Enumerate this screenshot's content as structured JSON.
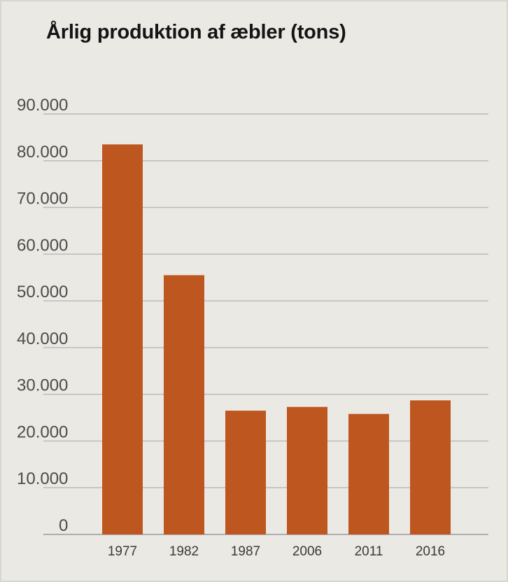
{
  "chart_data": {
    "type": "bar",
    "title": "Årlig produktion af æbler (tons)",
    "categories": [
      "1977",
      "1982",
      "1987",
      "2006",
      "2011",
      "2016"
    ],
    "values": [
      83500,
      55500,
      26500,
      27300,
      25800,
      28700
    ],
    "yticks": [
      "0",
      "10.000",
      "20.000",
      "30.000",
      "40.000",
      "50.000",
      "60.000",
      "70.000",
      "80.000",
      "90.000"
    ],
    "ylim": [
      0,
      90000
    ],
    "xlabel": "",
    "ylabel": "",
    "grid": true,
    "colors": {
      "bar": "#be5620",
      "background": "#ebe9e4",
      "grid": "#b8b8bb"
    }
  }
}
